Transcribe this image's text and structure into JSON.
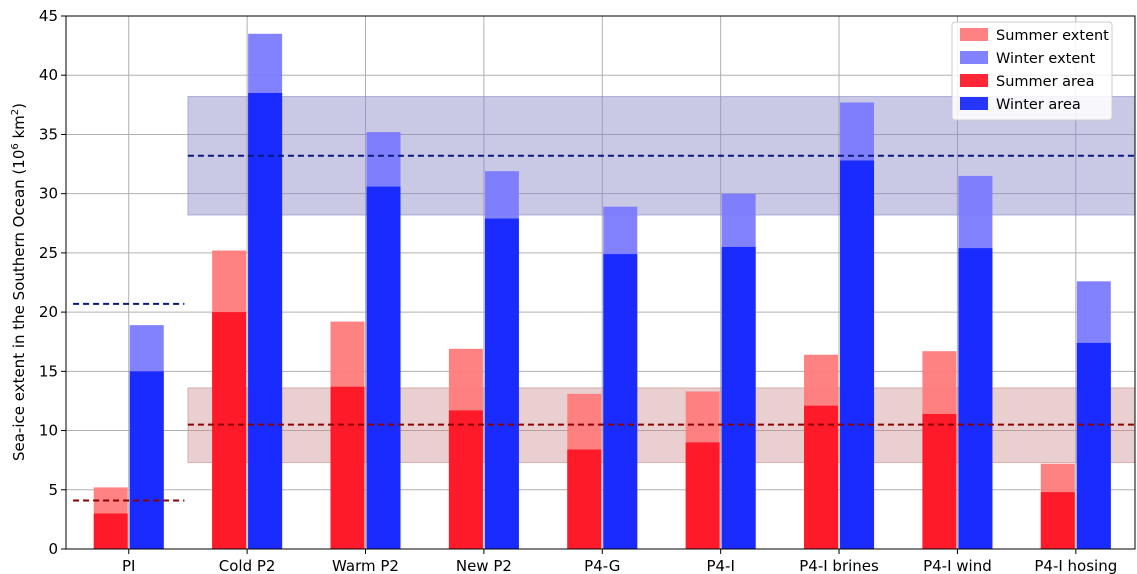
{
  "chart_data": {
    "type": "bar",
    "ylabel_main": "Sea-ice extent in the Southern Ocean (10",
    "ylabel_exp": "6",
    "ylabel_unit": " km",
    "ylabel_unit_exp": "2",
    "ylabel_close": ")",
    "xlabel": "",
    "ylim": [
      0,
      45
    ],
    "yticks": [
      0,
      5,
      10,
      15,
      20,
      25,
      30,
      35,
      40,
      45
    ],
    "grid": true,
    "legend_position": "top-right",
    "categories": [
      "PI",
      "Cold P2",
      "Warm P2",
      "New P2",
      "P4-G",
      "P4-I",
      "P4-I brines",
      "P4-I wind",
      "P4-I hosing"
    ],
    "series": [
      {
        "name": "Summer extent",
        "color": "#ff7b7b",
        "values": [
          5.2,
          25.2,
          19.2,
          16.9,
          13.1,
          13.3,
          16.4,
          16.7,
          7.2
        ]
      },
      {
        "name": "Winter extent",
        "color": "#7b7bff",
        "values": [
          18.9,
          43.5,
          35.2,
          31.9,
          28.9,
          30.0,
          37.7,
          31.5,
          22.6
        ]
      },
      {
        "name": "Summer area",
        "color": "#ff1a2a",
        "values": [
          3.0,
          20.0,
          13.7,
          11.7,
          8.4,
          9.0,
          12.1,
          11.4,
          4.8
        ]
      },
      {
        "name": "Winter area",
        "color": "#1a2bff",
        "values": [
          15.0,
          38.5,
          30.6,
          27.9,
          24.9,
          25.5,
          32.8,
          25.4,
          17.4
        ]
      }
    ],
    "reference_lines": {
      "winter_pi": 20.7,
      "summer_pi": 4.1,
      "winter_observed": 33.2,
      "summer_observed": 10.5,
      "winter_band": [
        28.2,
        38.2
      ],
      "summer_band": [
        7.3,
        13.6
      ],
      "winter_color": "#0a1a7a",
      "summer_color": "#8b0000",
      "winter_band_color": "#8888c8",
      "summer_band_color": "#c88888"
    }
  }
}
